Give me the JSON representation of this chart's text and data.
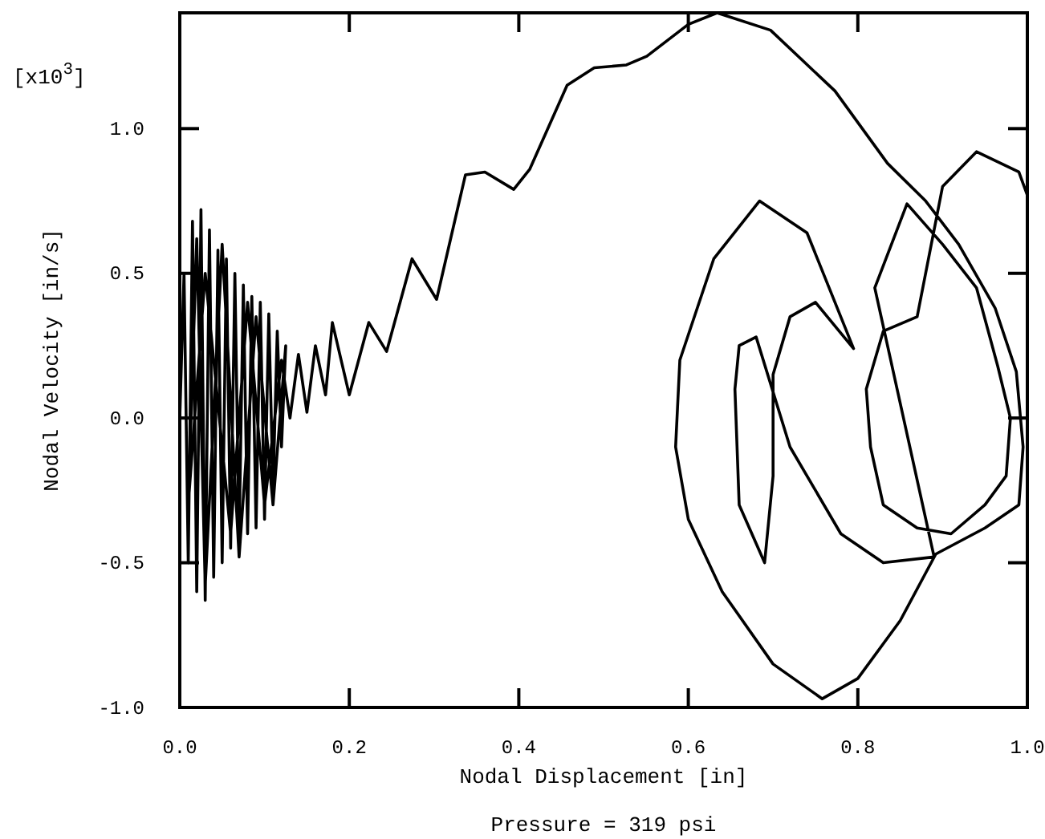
{
  "chart_data": {
    "type": "line",
    "xlabel": "Nodal Displacement [in]",
    "ylabel": "Nodal Velocity [in/s]",
    "annotations": [
      "[x10$^{3}$]",
      "Pressure = 319 psi"
    ],
    "xlim": [
      0,
      1.0
    ],
    "ylim": [
      -1.0,
      1.4
    ],
    "xticks": [
      {
        "value": 0,
        "label": "0.0"
      },
      {
        "value": 0.2,
        "label": "0.2"
      },
      {
        "value": 0.4,
        "label": "0.4"
      },
      {
        "value": 0.6,
        "label": "0.6"
      },
      {
        "value": 0.8,
        "label": "0.8"
      },
      {
        "value": 1,
        "label": "1.0"
      }
    ],
    "yticks": [
      {
        "value": -1,
        "label": "-1.0"
      },
      {
        "value": -0.5,
        "label": "-0.5"
      },
      {
        "value": 0,
        "label": "0.0"
      },
      {
        "value": 0.5,
        "label": "0.5"
      },
      {
        "value": 1,
        "label": "1.0"
      }
    ],
    "grid": false,
    "marker": "none",
    "line_style": "solid",
    "series": [
      {
        "color": "#000000",
        "x": [
          0,
          0.005,
          0.01,
          0.015,
          0.02,
          0.025,
          0.03,
          0.035,
          0.04,
          0.045,
          0.05,
          0.055,
          0.06,
          0.065,
          0.07,
          0.075,
          0.08,
          0.085,
          0.09,
          0.095,
          0.1,
          0.105,
          0.11,
          0.115,
          0.12,
          0.125,
          0.11,
          0.09,
          0.07,
          0.05,
          0.03,
          0.02,
          0.01,
          0.03,
          0.06,
          0.08,
          0.1,
          0.12,
          0.13,
          0.14,
          0.15,
          0.16,
          0.172,
          0.18,
          0.2,
          0.223,
          0.244,
          0.274,
          0.303,
          0.337,
          0.36,
          0.394,
          0.413,
          0.457,
          0.489,
          0.527,
          0.551,
          0.6,
          0.634,
          0.697,
          0.773,
          0.835,
          0.88,
          0.919,
          0.962,
          0.987,
          0.995,
          0.99,
          0.95,
          0.892,
          0.85,
          0.8,
          0.758,
          0.7,
          0.64,
          0.6,
          0.585,
          0.59,
          0.63,
          0.684,
          0.74,
          0.795,
          0.75,
          0.72,
          0.7,
          0.7,
          0.69,
          0.66,
          0.655,
          0.66,
          0.68,
          0.72,
          0.78,
          0.83,
          0.89,
          0.82,
          0.858,
          0.9,
          0.94,
          0.965,
          0.98,
          0.975,
          0.95,
          0.91,
          0.87,
          0.83,
          0.815,
          0.81,
          0.83,
          0.87,
          0.9,
          0.94,
          0.99,
          1.0
        ],
        "values": [
          0,
          0.5,
          -0.5,
          0.68,
          -0.6,
          0.72,
          -0.63,
          0.65,
          -0.55,
          0.58,
          -0.5,
          0.55,
          -0.45,
          0.5,
          -0.42,
          0.46,
          -0.4,
          0.42,
          -0.38,
          0.4,
          -0.35,
          0.36,
          -0.25,
          0.3,
          -0.1,
          0.25,
          -0.3,
          0.35,
          -0.48,
          0.6,
          -0.58,
          0.62,
          -0.3,
          0.5,
          -0.4,
          0.4,
          -0.3,
          0.2,
          0.0,
          0.22,
          0.02,
          0.25,
          0.08,
          0.33,
          0.08,
          0.33,
          0.23,
          0.55,
          0.41,
          0.84,
          0.85,
          0.79,
          0.86,
          1.15,
          1.21,
          1.22,
          1.25,
          1.36,
          1.4,
          1.34,
          1.13,
          0.88,
          0.75,
          0.6,
          0.38,
          0.16,
          -0.1,
          -0.3,
          -0.38,
          -0.47,
          -0.7,
          -0.9,
          -0.97,
          -0.85,
          -0.6,
          -0.35,
          -0.1,
          0.2,
          0.55,
          0.75,
          0.64,
          0.24,
          0.4,
          0.35,
          0.15,
          -0.2,
          -0.5,
          -0.3,
          0.1,
          0.25,
          0.28,
          -0.1,
          -0.4,
          -0.5,
          -0.48,
          0.45,
          0.74,
          0.6,
          0.45,
          0.18,
          0.0,
          -0.2,
          -0.3,
          -0.4,
          -0.38,
          -0.3,
          -0.1,
          0.1,
          0.3,
          0.35,
          0.8,
          0.92,
          0.85,
          0.77
        ]
      }
    ]
  }
}
